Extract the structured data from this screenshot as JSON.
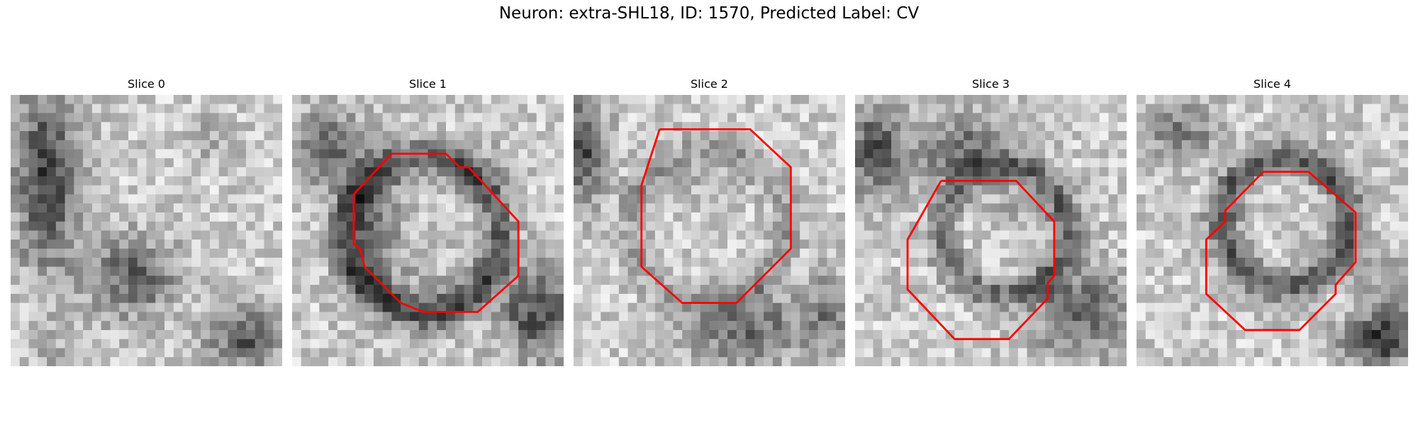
{
  "figure": {
    "title": "Neuron: extra-SHL18, ID: 1570, Predicted Label: CV"
  },
  "panels": [
    {
      "title": "Slice 0"
    },
    {
      "title": "Slice 1"
    },
    {
      "title": "Slice 2"
    },
    {
      "title": "Slice 3"
    },
    {
      "title": "Slice 4"
    }
  ],
  "colors": {
    "contour": "#ff0000",
    "background": "#ffffff"
  }
}
